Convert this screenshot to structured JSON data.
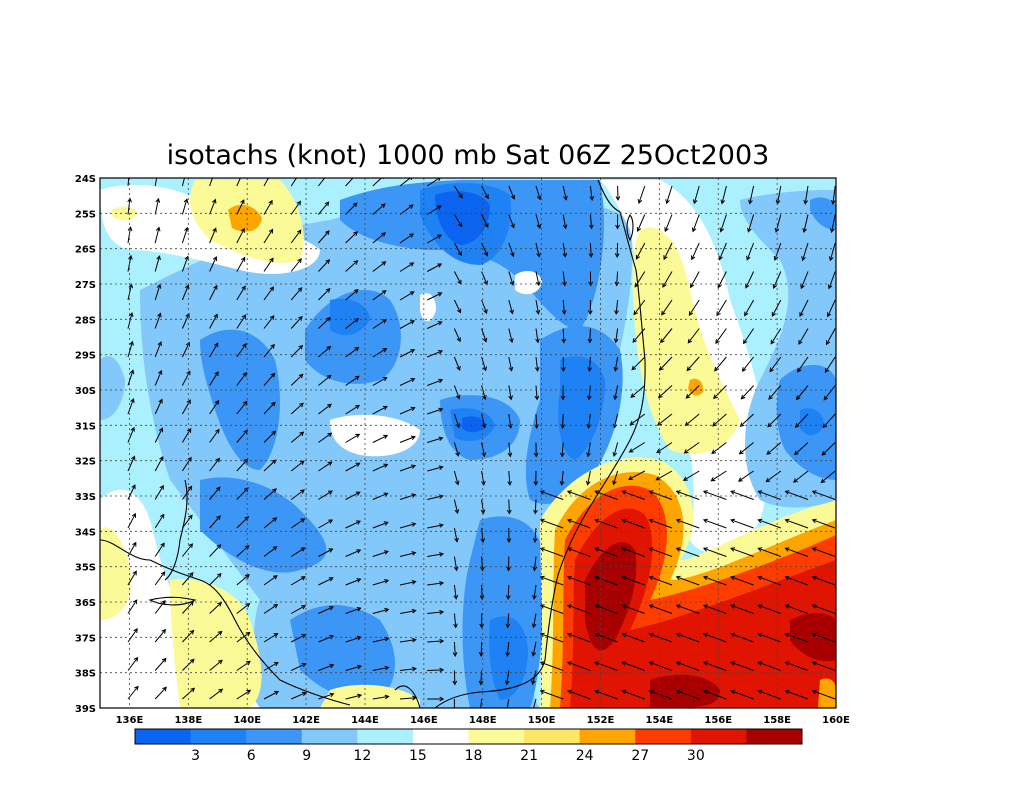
{
  "title": "isotachs (knot) 1000 mb Sat 06Z 25Oct2003",
  "lat_labels": [
    "24S",
    "25S",
    "26S",
    "27S",
    "28S",
    "29S",
    "30S",
    "31S",
    "32S",
    "33S",
    "34S",
    "35S",
    "36S",
    "37S",
    "38S",
    "39S"
  ],
  "lon_labels": [
    "136E",
    "138E",
    "140E",
    "142E",
    "144E",
    "146E",
    "148E",
    "150E",
    "152E",
    "154E",
    "156E",
    "158E",
    "160E"
  ],
  "colorbar": {
    "colors": [
      "#0a64f0",
      "#1e82f5",
      "#3c96f5",
      "#82c8fa",
      "#aaf0ff",
      "#ffffff",
      "#fafa96",
      "#ffe664",
      "#ffa500",
      "#ff3c00",
      "#e01400",
      "#a80000"
    ],
    "labels": [
      "3",
      "6",
      "9",
      "12",
      "15",
      "18",
      "21",
      "24",
      "27",
      "30"
    ]
  },
  "colors": {
    "coast": "#000000",
    "grid": "#444444",
    "arrow": "#000000"
  }
}
